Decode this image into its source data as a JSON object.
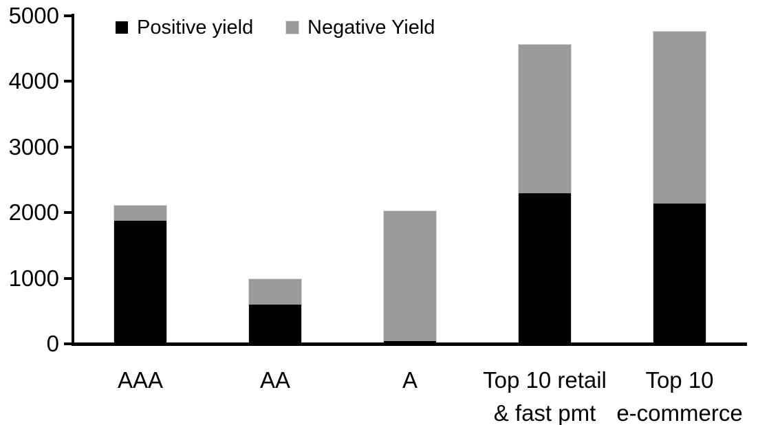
{
  "chart_data": {
    "type": "bar",
    "stacked": true,
    "title": "",
    "categories": [
      "AAA",
      "AA",
      "A",
      "Top 10 retail\n& fast pmt",
      "Top 10\ne-commerce"
    ],
    "series": [
      {
        "name": "Positive yield",
        "color": "#000000",
        "values": [
          1880,
          600,
          40,
          2300,
          2140
        ]
      },
      {
        "name": "Negative Yield",
        "color": "#9a9a9a",
        "values": [
          240,
          400,
          1990,
          2270,
          2620
        ]
      }
    ],
    "stack_totals": [
      2120,
      1000,
      2030,
      4570,
      4760
    ],
    "xlabel": "",
    "ylabel": "",
    "ylim": [
      0,
      5000
    ],
    "yticks": [
      "0",
      "1000",
      "2000",
      "3000",
      "4000",
      "5000"
    ],
    "grid": false,
    "legend_position": "top",
    "axis_color": "#000000",
    "bar_outline_color": "#d9d9d9",
    "background_color": "#ffffff"
  }
}
